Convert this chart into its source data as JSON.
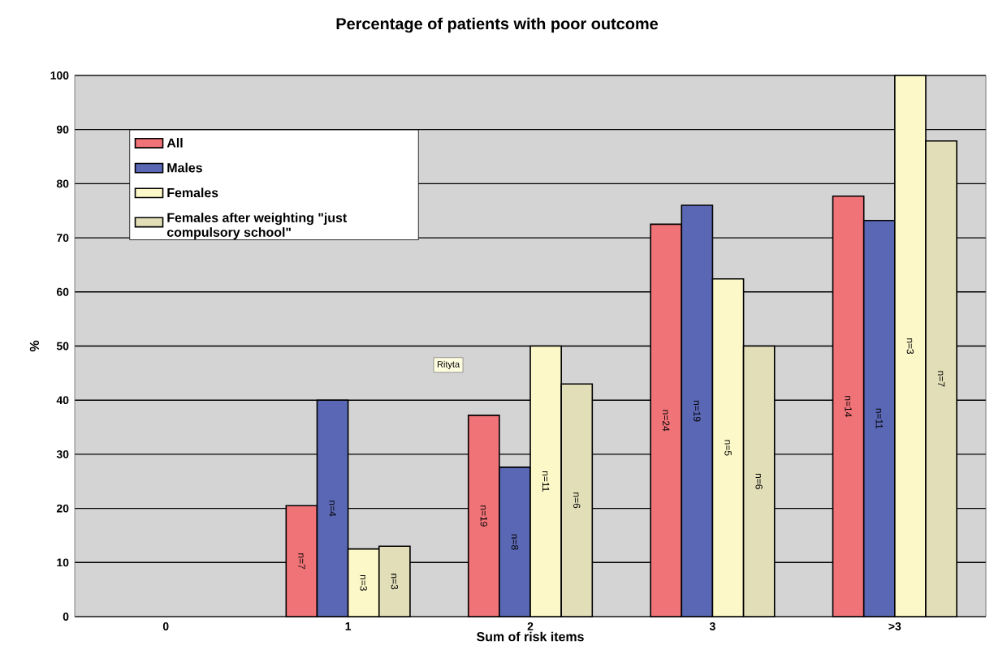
{
  "chart_data": {
    "type": "bar",
    "title": "Percentage of patients with poor outcome",
    "xlabel": "Sum of risk items",
    "ylabel": "%",
    "categories": [
      "0",
      "1",
      "2",
      "3",
      ">3"
    ],
    "series": [
      {
        "name": "All",
        "color": "#f07378",
        "values": [
          null,
          20.5,
          37.2,
          72.5,
          77.7
        ]
      },
      {
        "name": "Males",
        "color": "#5a67b4",
        "values": [
          null,
          40,
          27.6,
          76,
          73.2
        ]
      },
      {
        "name": "Females",
        "color": "#fcf8c8",
        "values": [
          null,
          12.5,
          50,
          62.4,
          100
        ]
      },
      {
        "name": "Females after weighting \"just compulsory school\"",
        "color": "#e2dfb8",
        "values": [
          null,
          13,
          43,
          50,
          87.9
        ]
      }
    ],
    "ylim": [
      0,
      100
    ],
    "yticks": [
      0,
      10,
      20,
      30,
      40,
      50,
      60,
      70,
      80,
      90,
      100
    ],
    "grid": "y",
    "legend": "top left",
    "annotations": [
      "Rityta",
      "n=7",
      "n=4",
      "n=3",
      "n=3",
      "n=19",
      "n=8",
      "n=11",
      "n=6",
      "n=24",
      "n=19",
      "n=5",
      "n=6",
      "n=14",
      "n=11",
      "n=3",
      "n=7"
    ]
  }
}
